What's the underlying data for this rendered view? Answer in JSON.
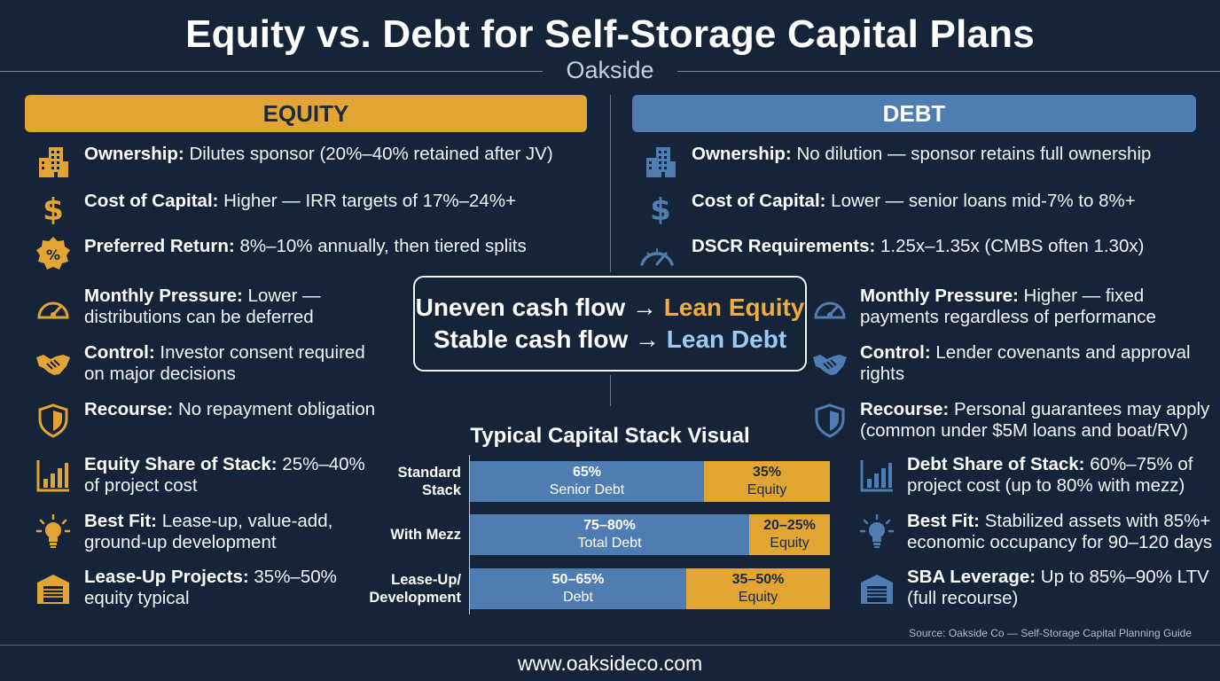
{
  "header": {
    "title": "Equity vs. Debt for Self-Storage Capital Plans",
    "brand": "Oakside"
  },
  "colors": {
    "background": "#16243a",
    "equity_accent": "#e2a433",
    "debt_accent": "#4f7db2",
    "lean_debt_text": "#9ccaf2"
  },
  "equity": {
    "banner": "EQUITY",
    "items": [
      {
        "icon": "building-icon",
        "label": "Ownership:",
        "text": " Dilutes sponsor (20%–40% retained after JV)"
      },
      {
        "icon": "dollar-icon",
        "label": "Cost of Capital:",
        "text": " Higher — IRR targets of 17%–24%+"
      },
      {
        "icon": "percent-badge-icon",
        "label": "Preferred Return:",
        "text": " 8%–10% annually, then tiered splits"
      },
      {
        "icon": "gauge-icon",
        "label": "Monthly Pressure:",
        "text": " Lower — distributions can be deferred"
      },
      {
        "icon": "handshake-icon",
        "label": "Control:",
        "text": " Investor consent required on major decisions"
      },
      {
        "icon": "shield-icon",
        "label": "Recourse:",
        "text": " No repayment obligation"
      },
      {
        "icon": "bar-chart-icon",
        "label": "Equity Share of Stack:",
        "text": " 25%–40% of project cost"
      },
      {
        "icon": "lightbulb-icon",
        "label": "Best Fit:",
        "text": " Lease-up, value-add, ground-up development"
      },
      {
        "icon": "storage-unit-icon",
        "label": "Lease-Up Projects:",
        "text": " 35%–50% equity typical"
      }
    ]
  },
  "debt": {
    "banner": "DEBT",
    "items": [
      {
        "icon": "building-icon",
        "label": "Ownership:",
        "text": " No dilution — sponsor retains full ownership"
      },
      {
        "icon": "dollar-icon",
        "label": "Cost of Capital:",
        "text": " Lower — senior loans mid-7% to 8%+"
      },
      {
        "icon": "speedometer-icon",
        "label": "DSCR Requirements:",
        "text": " 1.25x–1.35x (CMBS often 1.30x)"
      },
      {
        "icon": "gauge-icon",
        "label": "Monthly Pressure:",
        "text": " Higher — fixed payments regardless of performance"
      },
      {
        "icon": "handshake-icon",
        "label": "Control:",
        "text": " Lender covenants and approval rights"
      },
      {
        "icon": "shield-icon",
        "label": "Recourse:",
        "text": " Personal guarantees may apply (common under $5M loans and boat/RV)"
      },
      {
        "icon": "bar-chart-icon",
        "label": "Debt Share of Stack:",
        "text": " 60%–75% of project cost (up to 80% with mezz)"
      },
      {
        "icon": "lightbulb-icon",
        "label": "Best Fit:",
        "text": " Stabilized assets with 85%+ economic occupancy for 90–120 days"
      },
      {
        "icon": "storage-unit-icon",
        "label": "SBA Leverage:",
        "text": " Up to 85%–90% LTV (full recourse)"
      }
    ]
  },
  "callout": {
    "line1_prefix": "Uneven cash flow → ",
    "line1_highlight": "Lean Equity",
    "line2_prefix": "Stable cash flow → ",
    "line2_highlight": "Lean Debt"
  },
  "capital_stack": {
    "title": "Typical Capital Stack Visual",
    "rows": [
      {
        "label": "Standard Stack",
        "debt_value": "65%",
        "debt_label": "Senior Debt",
        "debt_share": 0.65,
        "equity_value": "35%",
        "equity_label": "Equity"
      },
      {
        "label": "With Mezz",
        "debt_value": "75–80%",
        "debt_label": "Total Debt",
        "debt_share": 0.775,
        "equity_value": "20–25%",
        "equity_label": "Equity"
      },
      {
        "label": "Lease-Up/ Development",
        "debt_value": "50–65%",
        "debt_label": "Debt",
        "debt_share": 0.6,
        "equity_value": "35–50%",
        "equity_label": "Equity"
      }
    ]
  },
  "source": "Source: Oakside Co — Self-Storage Capital Planning Guide",
  "footer": {
    "url": "www.oaksideco.com"
  }
}
